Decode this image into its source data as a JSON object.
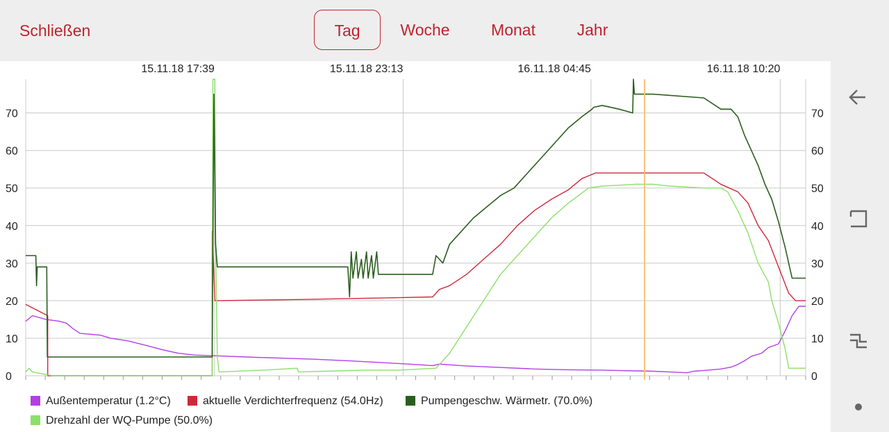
{
  "toolbar": {
    "close_label": "Schließen",
    "tabs": [
      {
        "label": "Tag",
        "active": true
      },
      {
        "label": "Woche",
        "active": false
      },
      {
        "label": "Monat",
        "active": false
      },
      {
        "label": "Jahr",
        "active": false
      }
    ]
  },
  "navigation": {
    "icons": [
      "back-icon",
      "recents-icon",
      "return-icon",
      "home-dot-icon"
    ]
  },
  "chart_data": {
    "type": "line",
    "x_unit": "hours since 15.11.18 12:05",
    "x_ticks": [
      {
        "x": 5.57,
        "label": "15.11.18 17:39"
      },
      {
        "x": 11.13,
        "label": "15.11.18 23:13"
      },
      {
        "x": 16.67,
        "label": "16.11.18 04:45"
      },
      {
        "x": 22.25,
        "label": "16.11.18 10:20"
      }
    ],
    "xlim": [
      0,
      23.0
    ],
    "ylim": [
      0,
      79
    ],
    "y_ticks": [
      0,
      10,
      20,
      30,
      40,
      50,
      60,
      70
    ],
    "grid": true,
    "cursor_x": 18.25,
    "cursor_color": "#f5c27a",
    "legend_position": "bottom",
    "series": [
      {
        "name": "Außentemperatur (1.2°C)",
        "color": "#b23fe6",
        "points": [
          [
            0,
            14.5
          ],
          [
            0.2,
            16
          ],
          [
            0.6,
            15
          ],
          [
            1.0,
            14.5
          ],
          [
            1.2,
            14
          ],
          [
            1.4,
            12.5
          ],
          [
            1.6,
            11.3
          ],
          [
            2.2,
            10.8
          ],
          [
            2.5,
            10
          ],
          [
            3.0,
            9.3
          ],
          [
            3.5,
            8.2
          ],
          [
            4.0,
            7
          ],
          [
            4.5,
            6
          ],
          [
            5.0,
            5.5
          ],
          [
            5.7,
            5.3
          ],
          [
            6.5,
            5.0
          ],
          [
            7.5,
            4.7
          ],
          [
            8.5,
            4.4
          ],
          [
            9.5,
            4.0
          ],
          [
            10.5,
            3.5
          ],
          [
            11.5,
            3.0
          ],
          [
            12.0,
            2.7
          ],
          [
            12.2,
            3.1
          ],
          [
            12.5,
            2.9
          ],
          [
            13.0,
            2.6
          ],
          [
            14.0,
            2.2
          ],
          [
            15.0,
            1.8
          ],
          [
            16.0,
            1.6
          ],
          [
            17.0,
            1.5
          ],
          [
            18.0,
            1.3
          ],
          [
            18.5,
            1.2
          ],
          [
            19.0,
            1.0
          ],
          [
            19.5,
            0.8
          ],
          [
            19.7,
            1.2
          ],
          [
            20.0,
            1.4
          ],
          [
            20.5,
            1.8
          ],
          [
            20.8,
            2.3
          ],
          [
            21.0,
            3.0
          ],
          [
            21.2,
            4.0
          ],
          [
            21.4,
            5.2
          ],
          [
            21.7,
            6.0
          ],
          [
            21.9,
            7.5
          ],
          [
            22.2,
            8.5
          ],
          [
            22.4,
            12
          ],
          [
            22.6,
            16
          ],
          [
            22.8,
            18.5
          ],
          [
            23.0,
            18.5
          ]
        ]
      },
      {
        "name": "aktuelle Verdichterfrequenz (54.0Hz)",
        "color": "#d0283a",
        "points": [
          [
            0,
            19
          ],
          [
            0.65,
            16
          ],
          [
            0.65,
            0
          ],
          [
            5.5,
            0
          ],
          [
            5.5,
            38.5
          ],
          [
            5.58,
            20
          ],
          [
            8.0,
            20.3
          ],
          [
            11.0,
            20.8
          ],
          [
            12.0,
            21
          ],
          [
            12.2,
            23
          ],
          [
            12.5,
            24
          ],
          [
            13.0,
            27
          ],
          [
            13.5,
            31
          ],
          [
            14.0,
            35
          ],
          [
            14.5,
            40
          ],
          [
            15.0,
            44
          ],
          [
            15.5,
            47
          ],
          [
            16.0,
            49.5
          ],
          [
            16.4,
            52.5
          ],
          [
            16.8,
            54
          ],
          [
            18.5,
            54
          ],
          [
            19.0,
            54
          ],
          [
            20.0,
            54
          ],
          [
            20.5,
            51
          ],
          [
            21.0,
            49
          ],
          [
            21.3,
            46
          ],
          [
            21.6,
            40
          ],
          [
            21.9,
            36
          ],
          [
            22.2,
            29
          ],
          [
            22.5,
            22
          ],
          [
            22.7,
            20
          ],
          [
            23.0,
            20
          ]
        ]
      },
      {
        "name": "Pumpengeschw. Wärmetr. (70.0%)",
        "color": "#2b5e1e",
        "points": [
          [
            0,
            32
          ],
          [
            0.3,
            32
          ],
          [
            0.32,
            24
          ],
          [
            0.34,
            29
          ],
          [
            0.62,
            29
          ],
          [
            0.64,
            5
          ],
          [
            5.5,
            5
          ],
          [
            5.55,
            75
          ],
          [
            5.6,
            35
          ],
          [
            5.65,
            29
          ],
          [
            8.0,
            29
          ],
          [
            9.5,
            29
          ],
          [
            9.55,
            21
          ],
          [
            9.6,
            33
          ],
          [
            9.65,
            26
          ],
          [
            9.75,
            33
          ],
          [
            9.8,
            26
          ],
          [
            9.9,
            31
          ],
          [
            9.95,
            26
          ],
          [
            10.05,
            33
          ],
          [
            10.1,
            26
          ],
          [
            10.2,
            32
          ],
          [
            10.25,
            26
          ],
          [
            10.35,
            33
          ],
          [
            10.4,
            27
          ],
          [
            10.9,
            27
          ],
          [
            11.0,
            27
          ],
          [
            11.8,
            27
          ],
          [
            12.0,
            27
          ],
          [
            12.1,
            32
          ],
          [
            12.3,
            30
          ],
          [
            12.5,
            35
          ],
          [
            12.8,
            38
          ],
          [
            13.2,
            42
          ],
          [
            13.6,
            45
          ],
          [
            14.0,
            48
          ],
          [
            14.4,
            50
          ],
          [
            14.8,
            54
          ],
          [
            15.2,
            58
          ],
          [
            15.6,
            62
          ],
          [
            16.0,
            66
          ],
          [
            16.4,
            69
          ],
          [
            16.7,
            71
          ],
          [
            16.75,
            71.5
          ],
          [
            17.0,
            72
          ],
          [
            17.5,
            71
          ],
          [
            17.9,
            70
          ],
          [
            17.92,
            79
          ],
          [
            17.95,
            75
          ],
          [
            18.5,
            75
          ],
          [
            20.0,
            74
          ],
          [
            20.5,
            71
          ],
          [
            20.8,
            71
          ],
          [
            21.0,
            69
          ],
          [
            21.2,
            64
          ],
          [
            21.4,
            60
          ],
          [
            21.6,
            56
          ],
          [
            21.8,
            51
          ],
          [
            22.0,
            47
          ],
          [
            22.2,
            41
          ],
          [
            22.4,
            34
          ],
          [
            22.55,
            28
          ],
          [
            22.6,
            26
          ],
          [
            23.0,
            26
          ]
        ]
      },
      {
        "name": "Drehzahl der WQ-Pumpe (50.0%)",
        "color": "#8be06a",
        "points": [
          [
            0,
            1
          ],
          [
            0.1,
            2
          ],
          [
            0.2,
            1
          ],
          [
            0.5,
            0.5
          ],
          [
            0.8,
            0
          ],
          [
            5.5,
            0
          ],
          [
            5.52,
            79
          ],
          [
            5.58,
            79
          ],
          [
            5.6,
            35
          ],
          [
            5.65,
            5
          ],
          [
            5.7,
            1
          ],
          [
            7.0,
            1.5
          ],
          [
            8.0,
            2
          ],
          [
            8.05,
            1
          ],
          [
            10.0,
            1.5
          ],
          [
            11.0,
            1.5
          ],
          [
            12.1,
            2
          ],
          [
            12.5,
            6
          ],
          [
            13.0,
            13
          ],
          [
            13.5,
            20
          ],
          [
            14.0,
            27
          ],
          [
            14.5,
            32
          ],
          [
            15.0,
            37
          ],
          [
            15.5,
            42
          ],
          [
            16.0,
            46
          ],
          [
            16.3,
            48
          ],
          [
            16.6,
            50
          ],
          [
            17.0,
            50.5
          ],
          [
            18.0,
            51
          ],
          [
            18.5,
            51
          ],
          [
            19.0,
            50.5
          ],
          [
            20.0,
            50
          ],
          [
            20.5,
            50
          ],
          [
            20.7,
            49
          ],
          [
            21.0,
            44
          ],
          [
            21.3,
            38
          ],
          [
            21.6,
            30
          ],
          [
            21.9,
            25
          ],
          [
            22.0,
            20
          ],
          [
            22.2,
            14
          ],
          [
            22.4,
            7
          ],
          [
            22.5,
            2
          ],
          [
            23.0,
            2
          ]
        ]
      }
    ]
  }
}
